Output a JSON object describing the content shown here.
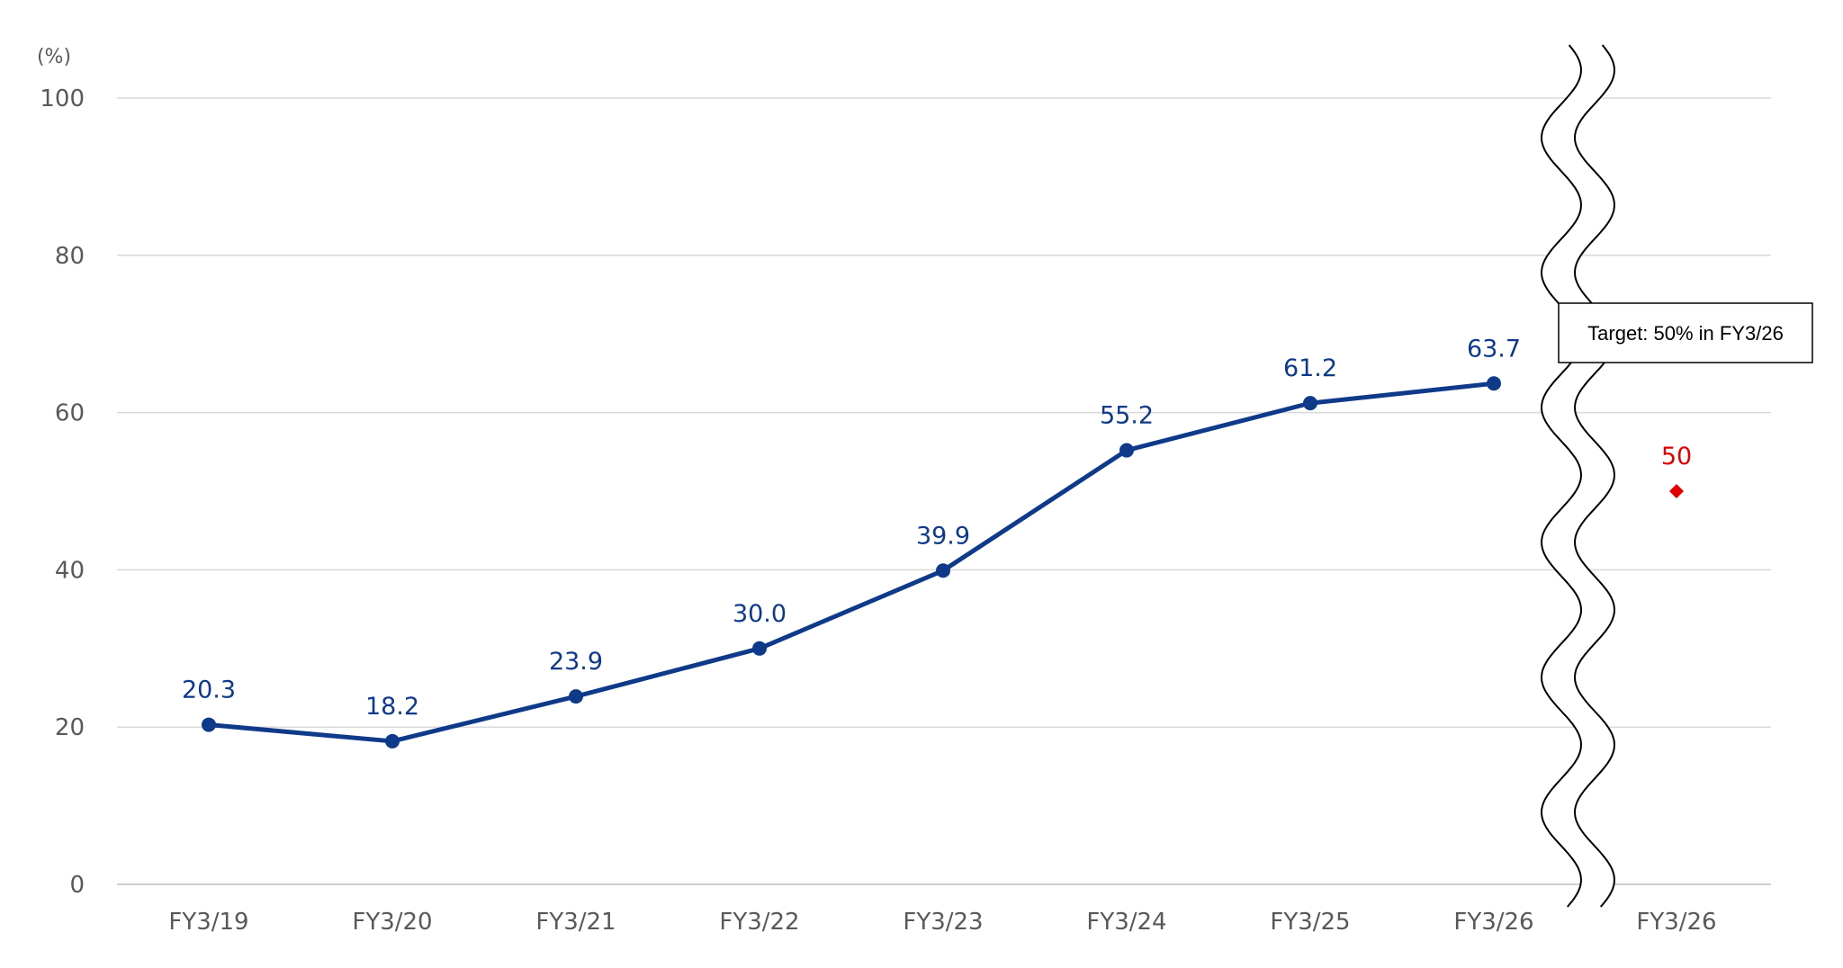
{
  "chart_data": {
    "type": "line",
    "ylabel": "(%)",
    "ylim": [
      0,
      100
    ],
    "yticks": [
      0,
      20,
      40,
      60,
      80,
      100
    ],
    "grid": true,
    "categories": [
      "FY3/19",
      "FY3/20",
      "FY3/21",
      "FY3/22",
      "FY3/23",
      "FY3/24",
      "FY3/25",
      "FY3/26"
    ],
    "series": [
      {
        "values": [
          20.3,
          18.2,
          23.9,
          30.0,
          39.9,
          55.2,
          61.2,
          63.7
        ],
        "labels": [
          "20.3",
          "18.2",
          "23.9",
          "30.0",
          "39.9",
          "55.2",
          "61.2",
          "63.7"
        ],
        "color": "#0f3a8a"
      }
    ],
    "target": {
      "category": "FY3/26",
      "value": 50,
      "label": "50",
      "color": "#e00000",
      "marker": "diamond"
    },
    "axis_break": true,
    "annotation": "Target: 50% in FY3/26"
  }
}
